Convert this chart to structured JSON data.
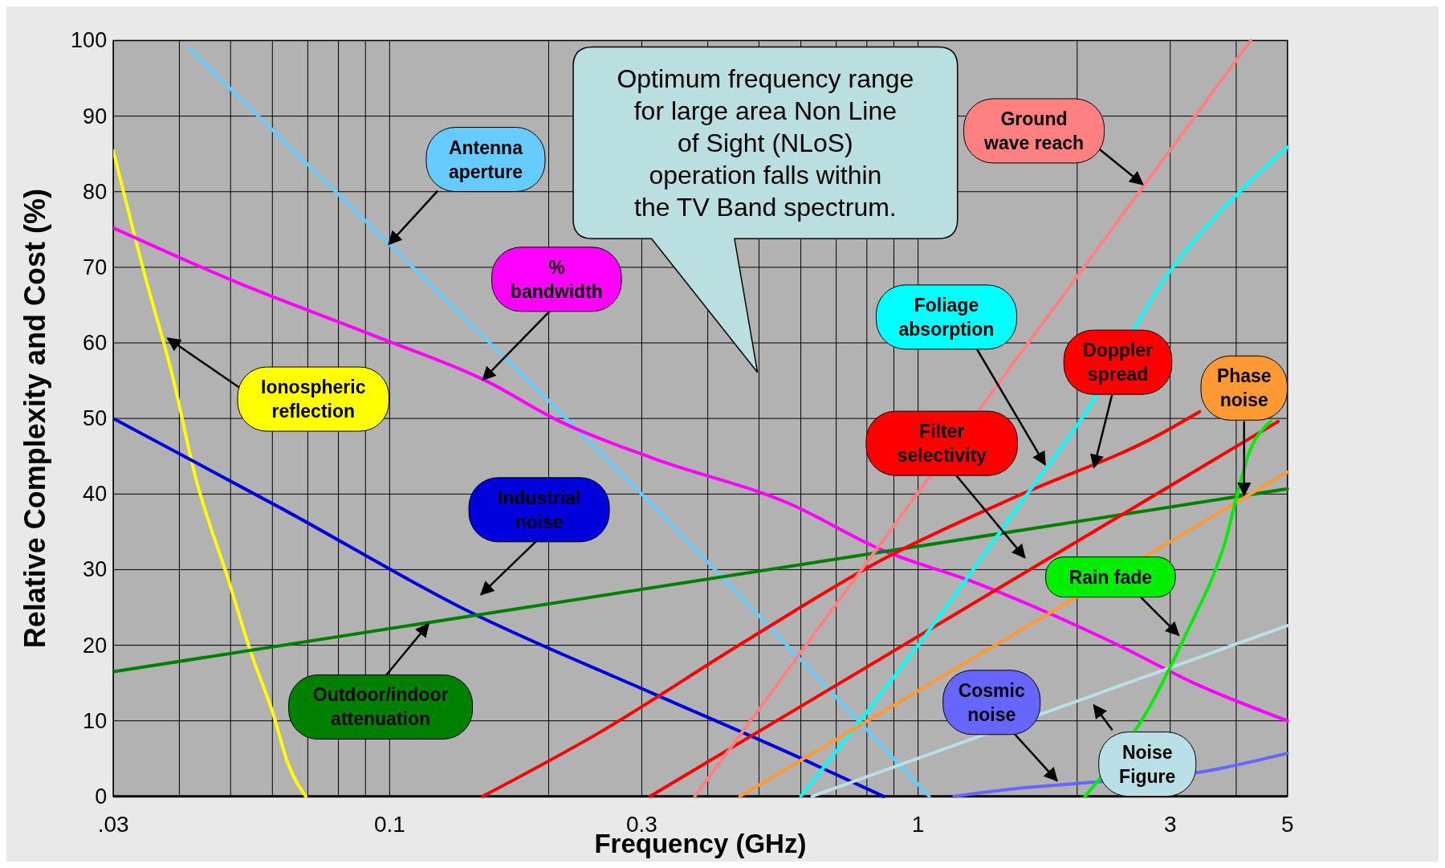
{
  "chart_data": {
    "type": "line",
    "xlabel": "Frequency (GHz)",
    "ylabel": "Relative Complexity and Cost (%)",
    "log": "x",
    "grid": true,
    "xlim": [
      0.03,
      5
    ],
    "ylim": [
      0,
      100
    ],
    "xticks": [
      {
        "value": 0.03,
        "label": ".03"
      },
      {
        "value": 0.04,
        "label": null
      },
      {
        "value": 0.05,
        "label": null
      },
      {
        "value": 0.06,
        "label": null
      },
      {
        "value": 0.07,
        "label": null
      },
      {
        "value": 0.08,
        "label": null
      },
      {
        "value": 0.09,
        "label": null
      },
      {
        "value": 0.1,
        "label": "0.1"
      },
      {
        "value": 0.2,
        "label": null
      },
      {
        "value": 0.3,
        "label": "0.3"
      },
      {
        "value": 0.4,
        "label": null
      },
      {
        "value": 0.5,
        "label": null
      },
      {
        "value": 0.6,
        "label": null
      },
      {
        "value": 0.7,
        "label": null
      },
      {
        "value": 0.8,
        "label": null
      },
      {
        "value": 0.9,
        "label": null
      },
      1,
      {
        "value": 2,
        "label": null
      },
      3,
      {
        "value": 4,
        "label": null
      },
      5
    ],
    "yticks": [
      0,
      10,
      20,
      30,
      40,
      50,
      60,
      70,
      80,
      90,
      100
    ],
    "annotations": [
      "Optimum frequency range for large area Non Line of Sight (NLoS) operation falls within the TV Band spectrum."
    ],
    "series": [
      {
        "name": "Ionospheric reflection",
        "color": "#ffff00",
        "x": [
          0.03,
          0.0344,
          0.0388,
          0.0429,
          0.0494,
          0.0546,
          0.0604,
          0.0641,
          0.0694
        ],
        "values": [
          85.4,
          69,
          55.7,
          42.3,
          28.9,
          19.1,
          10.6,
          4.5,
          0
        ]
      },
      {
        "name": "Antenna aperture",
        "color": "#66ccff",
        "x": [
          0.0417,
          0.1,
          0.3,
          1.05
        ],
        "values": [
          99,
          73,
          40,
          0
        ]
      },
      {
        "name": "% bandwidth",
        "color": "#ff00ff",
        "x": [
          0.03,
          0.0514,
          0.0939,
          0.152,
          0.21,
          0.313,
          0.572,
          0.854,
          1.28,
          2.33,
          3.35,
          5
        ],
        "values": [
          75.2,
          68,
          60.9,
          55,
          49.6,
          44.8,
          38.7,
          32.6,
          28.3,
          20.4,
          14.9,
          10
        ]
      },
      {
        "name": "Industrial noise",
        "color": "#0000dd",
        "x": [
          0.03,
          0.0628,
          0.14,
          0.313,
          0.572,
          0.861
        ],
        "values": [
          50,
          38,
          24.6,
          13.7,
          5.7,
          0
        ]
      },
      {
        "name": "Outdoor/indoor attenuation",
        "color": "#008000",
        "x": [
          0.03,
          5
        ],
        "values": [
          16.5,
          40.7
        ]
      },
      {
        "name": "Doppler spread",
        "color": "#ff0000",
        "x": [
          0.15,
          0.246,
          0.468,
          0.854,
          1.56,
          2.85,
          3.41
        ],
        "values": [
          0,
          8.2,
          20.4,
          31.3,
          39.9,
          47.8,
          50.9
        ]
      },
      {
        "name": "Filter selectivity",
        "color": "#ff0000",
        "x": [
          0.311,
          4.8
        ],
        "values": [
          0,
          49.6
        ]
      },
      {
        "name": "Ground wave reach",
        "color": "#ff8080",
        "x": [
          0.378,
          4.26
        ],
        "values": [
          0,
          100
        ]
      },
      {
        "name": "Foliage absorption",
        "color": "#00ffff",
        "x": [
          0.6,
          1.04,
          1.56,
          2.1,
          2.97,
          3.77,
          5
        ],
        "values": [
          0,
          21.6,
          38.7,
          51.3,
          69.1,
          77.7,
          85.9
        ]
      },
      {
        "name": "Phase noise",
        "color": "#ff9933",
        "x": [
          0.46,
          5
        ],
        "values": [
          0,
          42.9
        ]
      },
      {
        "name": "Noise Figure",
        "color": "#b8e0e6",
        "x": [
          0.63,
          5
        ],
        "values": [
          0,
          22.6
        ]
      },
      {
        "name": "Cosmic noise",
        "color": "#6666ff",
        "x": [
          1.17,
          1.56,
          2,
          3.48,
          5
        ],
        "values": [
          0,
          1.1,
          1.7,
          3.3,
          5.7
        ]
      },
      {
        "name": "Rain fade",
        "color": "#00ee00",
        "x": [
          2.07,
          2.74,
          3.22,
          3.77,
          4.26,
          4.65
        ],
        "values": [
          0,
          11.8,
          21.6,
          32.6,
          46,
          49.6
        ]
      }
    ]
  }
}
